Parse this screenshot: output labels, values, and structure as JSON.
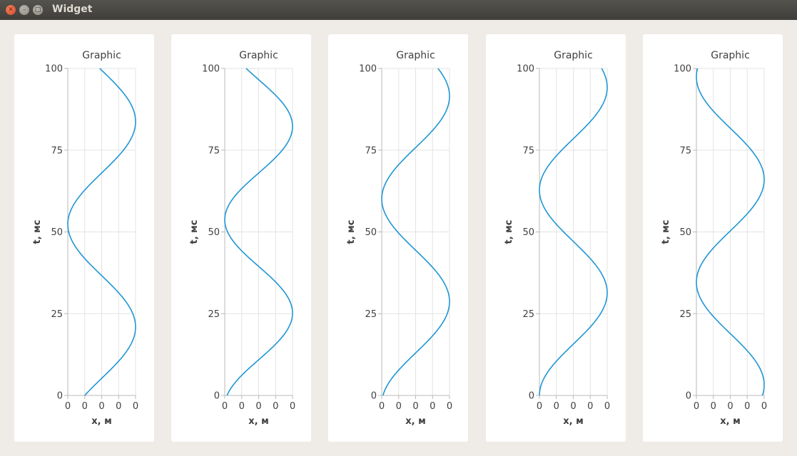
{
  "window": {
    "title": "Widget"
  },
  "charts_common": {
    "title": "Graphic",
    "xlabel": "x, м",
    "ylabel": "t, мс",
    "x_tick_labels": [
      "0",
      "0",
      "0",
      "0",
      "0"
    ],
    "y_tick_labels": [
      "0",
      "25",
      "50",
      "75",
      "100"
    ],
    "line_color": "#1f96d3",
    "grid_color": "#e3e3e3"
  },
  "chart_data": [
    {
      "type": "line",
      "title": "Graphic",
      "xlabel": "x, м",
      "ylabel": "t, мс",
      "xlim": [
        -1,
        1
      ],
      "ylim": [
        0,
        100
      ],
      "grid": true,
      "curve": {
        "t": [
          0,
          100
        ],
        "amp": 1,
        "offset": 0,
        "period": 62.8,
        "phase": -0.5236
      },
      "series": [
        {
          "x": [
            -0.5,
            0.5,
            0.87,
            1,
            0.87,
            0.5,
            0,
            -0.5,
            -0.87,
            -1,
            -0.87,
            -0.5,
            0,
            0.5,
            0.87,
            1,
            0.87,
            0.5,
            0,
            -0.5,
            -0.87
          ],
          "t": [
            0,
            5,
            10,
            15,
            20,
            25,
            30,
            35,
            40,
            45,
            50,
            55,
            60,
            65,
            70,
            75,
            80,
            85,
            90,
            95,
            100
          ]
        }
      ]
    },
    {
      "type": "line",
      "title": "Graphic",
      "xlabel": "x, м",
      "ylabel": "t, мс",
      "xlim": [
        -1,
        1
      ],
      "ylim": [
        0,
        100
      ],
      "grid": true,
      "curve": {
        "t": [
          0,
          100
        ],
        "amp": 1,
        "offset": 0,
        "period": 57.1,
        "phase": -1.2
      }
    },
    {
      "type": "line",
      "title": "Graphic",
      "xlabel": "x, м",
      "ylabel": "t, мс",
      "xlim": [
        -1,
        1
      ],
      "ylim": [
        0,
        100
      ],
      "grid": true,
      "curve": {
        "t": [
          0,
          100
        ],
        "amp": 1,
        "offset": 0,
        "period": 62.8,
        "phase": -1.3
      }
    },
    {
      "type": "line",
      "title": "Graphic",
      "xlabel": "x, м",
      "ylabel": "t, мс",
      "xlim": [
        -1,
        1
      ],
      "ylim": [
        0,
        100
      ],
      "grid": true,
      "curve": {
        "t": [
          0,
          100
        ],
        "amp": 1,
        "offset": 0,
        "period": 62.8,
        "phase": -1.57
      }
    },
    {
      "type": "line",
      "title": "Graphic",
      "xlabel": "x, м",
      "ylabel": "t, мс",
      "xlim": [
        -1,
        1
      ],
      "ylim": [
        0,
        100
      ],
      "grid": true,
      "curve": {
        "t": [
          0,
          100
        ],
        "amp": 1,
        "offset": 0,
        "period": 62.8,
        "phase": 1.25
      }
    }
  ]
}
